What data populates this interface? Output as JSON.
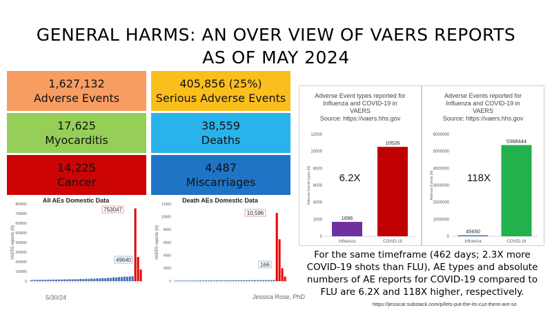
{
  "title": {
    "line1": "GENERAL HARMS: AN OVER VIEW OF VAERS REPORTS",
    "line2": "AS OF MAY 2024"
  },
  "tiles": [
    {
      "value": "1,627,132",
      "label": "Adverse Events",
      "color": "#f79d62"
    },
    {
      "value": "405,856 (25%)",
      "label": "Serious Adverse Events",
      "color": "#fbbf1d"
    },
    {
      "value": "17,625",
      "label": "Myocarditis",
      "color": "#95cf58"
    },
    {
      "value": "38,559",
      "label": "Deaths",
      "color": "#29b3ec"
    },
    {
      "value": "14,225",
      "label": "Cancer",
      "color": "#cc0404"
    },
    {
      "value": "4,487",
      "label": "Miscarriages",
      "color": "#1f74c6"
    }
  ],
  "footer": {
    "date": "5/30/24",
    "author": "Jessica Rose, PhD"
  },
  "summary": {
    "lines": [
      "For the same timeframe (462 days; 2.3X more",
      "COVID-19 shots than FLU), AE types and absolute",
      "numbers of AE reports for COVID-19 compared to",
      "FLU are 6.2X and 118X higher, respectively."
    ]
  },
  "source_url": "https://jessicar.substack.com/p/lets-put-the-its-cuz-there-are-so",
  "chart_data": [
    {
      "type": "bar",
      "title": "All AEs Domestic Data",
      "ylabel": "VAERS reports (N)",
      "ylim": [
        0,
        800000
      ],
      "yticks": [
        "0",
        "100000",
        "200000",
        "300000",
        "400000",
        "500000",
        "600000",
        "700000",
        "800000"
      ],
      "ytick_values": [
        0,
        100000,
        200000,
        300000,
        400000,
        500000,
        600000,
        700000,
        800000
      ],
      "values": [
        11000,
        12000,
        13000,
        12500,
        14000,
        13000,
        15000,
        14000,
        16000,
        15000,
        17000,
        16000,
        18000,
        17000,
        19000,
        18000,
        20000,
        19000,
        22000,
        21000,
        24000,
        23000,
        26000,
        25000,
        28000,
        27000,
        31000,
        30000,
        34000,
        33000,
        38000,
        37000,
        42000,
        41000,
        46000,
        45000,
        48000,
        49640,
        753047,
        250000,
        120000
      ],
      "red_from_index": 38,
      "annotations": [
        {
          "label": "753047",
          "value": 753047
        },
        {
          "label": "49640",
          "value": 49640
        }
      ]
    },
    {
      "type": "bar",
      "title": "Death AEs Domestic Data",
      "ylabel": "VAERS reports (N)",
      "ylim": [
        0,
        12000
      ],
      "yticks": [
        "0",
        "2000",
        "4000",
        "6000",
        "8000",
        "10000",
        "12000"
      ],
      "ytick_values": [
        0,
        2000,
        4000,
        6000,
        8000,
        10000,
        12000
      ],
      "values": [
        60,
        70,
        80,
        65,
        75,
        85,
        70,
        90,
        80,
        95,
        85,
        100,
        90,
        105,
        95,
        110,
        100,
        115,
        105,
        120,
        110,
        125,
        115,
        130,
        120,
        135,
        125,
        140,
        130,
        145,
        135,
        150,
        140,
        155,
        150,
        160,
        166,
        10596,
        6500,
        2000,
        700
      ],
      "red_from_index": 37,
      "annotations": [
        {
          "label": "10,596",
          "value": 10596
        },
        {
          "label": "166",
          "value": 166
        }
      ]
    },
    {
      "type": "bar",
      "title_lines": [
        "Adverse Event types reported for",
        "Influenza and COVID-19 in",
        "VAERS",
        "Source: https://vaers.hhs.gov"
      ],
      "ylabel": "Adverse Events types (N)",
      "ylim": [
        0,
        12000
      ],
      "yticks": [
        "0",
        "2000",
        "4000",
        "6000",
        "8000",
        "10000",
        "12000"
      ],
      "ytick_values": [
        0,
        2000,
        4000,
        6000,
        8000,
        10000,
        12000
      ],
      "categories": [
        "Influenza",
        "COVID-19"
      ],
      "values": [
        1696,
        10526
      ],
      "value_labels": [
        "1696",
        "10526"
      ],
      "colors": [
        "#7030a0",
        "#c00000"
      ],
      "multiplier": "6.2X"
    },
    {
      "type": "bar",
      "title_lines": [
        "Adverse Events reported for",
        "Influenza and COVID-19 in",
        "VAERS",
        "Source: https://vaers.hhs.gov"
      ],
      "ylabel": "Adverse Events (N)",
      "ylim": [
        0,
        6000000
      ],
      "yticks": [
        "0",
        "1000000",
        "2000000",
        "3000000",
        "4000000",
        "5000000",
        "6000000"
      ],
      "ytick_values": [
        0,
        1000000,
        2000000,
        3000000,
        4000000,
        5000000,
        6000000
      ],
      "categories": [
        "Influenza",
        "COVID-19"
      ],
      "values": [
        45650,
        5368444
      ],
      "value_labels": [
        "45650",
        "5368444"
      ],
      "colors": [
        "#4472c4",
        "#22b14c"
      ],
      "multiplier": "118X"
    }
  ]
}
